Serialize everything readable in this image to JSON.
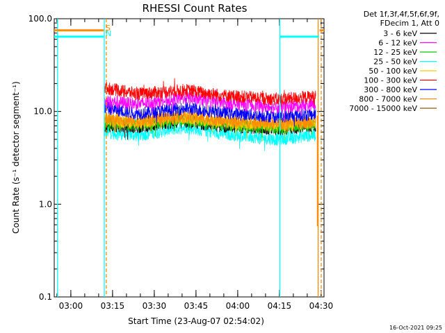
{
  "chart_data": {
    "type": "line",
    "title": "RHESSI Count Rates",
    "xlabel": "Start Time (23-Aug-07 02:54:02)",
    "ylabel": "Count Rate (s⁻¹ detector segment⁻¹)",
    "yscale": "log",
    "ylim": [
      0.1,
      100.0
    ],
    "xlim_minutes_from_start": [
      0,
      97
    ],
    "x_tick_labels": [
      "03:00",
      "03:15",
      "03:30",
      "03:45",
      "04:00",
      "04:15",
      "04:30"
    ],
    "x_tick_minutes_from_start": [
      5.97,
      20.97,
      35.97,
      50.97,
      65.97,
      80.97,
      95.97
    ],
    "y_tick_labels": [
      "0.1",
      "1.0",
      "10.0",
      "100.0"
    ],
    "y_tick_values": [
      0.1,
      1.0,
      10.0,
      100.0
    ],
    "legend_header": [
      "Det 1f,3f,4f,5f,6f,9f,",
      "FDecim 1, Att 0"
    ],
    "legend_position": "right",
    "series": [
      {
        "name": "3 - 6 keV",
        "color": "#000000",
        "points": [
          [
            18,
            7.0
          ],
          [
            30,
            6.8
          ],
          [
            47,
            7.8
          ],
          [
            60,
            7.0
          ],
          [
            80,
            6.4
          ],
          [
            94,
            7.0
          ]
        ]
      },
      {
        "name": "6 - 12 keV",
        "color": "#ff00ff",
        "points": [
          [
            18,
            13.0
          ],
          [
            30,
            12.0
          ],
          [
            47,
            14.0
          ],
          [
            60,
            12.5
          ],
          [
            80,
            11.0
          ],
          [
            94,
            12.0
          ]
        ]
      },
      {
        "name": "12 - 25 keV",
        "color": "#00d000",
        "points": [
          [
            18,
            7.5
          ],
          [
            30,
            7.2
          ],
          [
            47,
            8.2
          ],
          [
            60,
            7.3
          ],
          [
            80,
            6.6
          ],
          [
            94,
            7.2
          ]
        ]
      },
      {
        "name": "25 - 50 keV",
        "color": "#00ffff",
        "points": [
          [
            18,
            6.0
          ],
          [
            30,
            5.5
          ],
          [
            47,
            6.8
          ],
          [
            60,
            5.8
          ],
          [
            80,
            5.0
          ],
          [
            94,
            5.6
          ]
        ]
      },
      {
        "name": "50 - 100 keV",
        "color": "#ffcc00",
        "points": [
          [
            18,
            8.0
          ],
          [
            30,
            7.5
          ],
          [
            47,
            8.6
          ],
          [
            60,
            7.6
          ],
          [
            80,
            7.0
          ],
          [
            94,
            7.6
          ]
        ]
      },
      {
        "name": "100 - 300 keV",
        "color": "#ff0000",
        "points": [
          [
            18,
            18.0
          ],
          [
            30,
            15.5
          ],
          [
            47,
            17.0
          ],
          [
            60,
            15.0
          ],
          [
            80,
            13.5
          ],
          [
            94,
            14.5
          ]
        ]
      },
      {
        "name": "300 - 800 keV",
        "color": "#0000ff",
        "points": [
          [
            18,
            11.0
          ],
          [
            30,
            9.5
          ],
          [
            47,
            10.8
          ],
          [
            60,
            9.8
          ],
          [
            80,
            8.8
          ],
          [
            94,
            9.3
          ]
        ]
      },
      {
        "name": "800 - 7000 keV",
        "color": "#ff8c00",
        "points": [
          [
            18,
            8.5
          ],
          [
            30,
            7.8
          ],
          [
            47,
            9.0
          ],
          [
            60,
            8.0
          ],
          [
            80,
            7.4
          ],
          [
            94,
            7.8
          ]
        ]
      },
      {
        "name": "7000 - 15000 keV",
        "color": "#8b5a00",
        "points": []
      }
    ],
    "annotations": [
      {
        "text": "S",
        "color": "#ff8c00"
      },
      {
        "text": "N",
        "color": "#00ffff"
      }
    ],
    "vertical_markers": [
      {
        "minute": 1.2,
        "color": "#00ffff",
        "style": "solid"
      },
      {
        "minute": 18.0,
        "color": "#00ffff",
        "style": "solid"
      },
      {
        "minute": 18.7,
        "color": "#ff8c00",
        "style": "dashed"
      },
      {
        "minute": 81.1,
        "color": "#00ffff",
        "style": "solid"
      },
      {
        "minute": 94.9,
        "color": "#ff8c00",
        "style": "solid"
      },
      {
        "minute": 96.0,
        "color": "#ff8c00",
        "style": "dashed"
      }
    ],
    "flags": [
      {
        "color": "#ff8c00",
        "y": 75,
        "segments": [
          [
            0,
            17.8
          ],
          [
            95.4,
            97
          ]
        ]
      },
      {
        "color": "#00ffff",
        "y": 64,
        "segments": [
          [
            0,
            17.8
          ],
          [
            81.1,
            95.2
          ]
        ]
      }
    ],
    "timestamp": "16-Oct-2021 09:25"
  }
}
